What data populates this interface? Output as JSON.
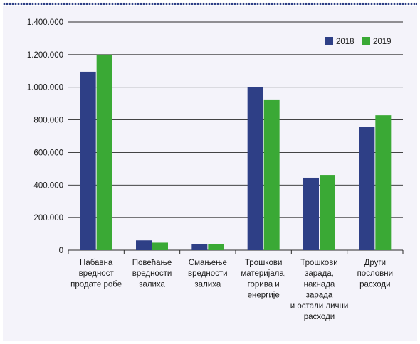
{
  "chart_data": {
    "type": "bar",
    "categories": [
      [
        "Набавна",
        "вредност",
        "продате робе"
      ],
      [
        "Повећање",
        "вредности",
        "залиха"
      ],
      [
        "Смањење",
        "вредности",
        "залиха"
      ],
      [
        "Трошкови",
        "материјала,",
        "горива и",
        "енергије"
      ],
      [
        "Трошкови",
        "зарада,",
        "накнада",
        "зарада",
        "и остали лични",
        "расходи"
      ],
      [
        "Други",
        "пословни",
        "расходи"
      ]
    ],
    "series": [
      {
        "name": "2018",
        "color": "#2e3f86",
        "values": [
          1095000,
          60000,
          38000,
          1000000,
          445000,
          758000
        ]
      },
      {
        "name": "2019",
        "color": "#3aa935",
        "values": [
          1200000,
          46000,
          37000,
          925000,
          462000,
          828000
        ]
      }
    ],
    "yticks": [
      "0",
      "200.000",
      "400.000",
      "600.000",
      "800.000",
      "1.000.000",
      "1.200.000",
      "1.400.000"
    ],
    "ylim": [
      0,
      1400000
    ],
    "grid": true,
    "legend_position": "top-right",
    "title": "",
    "xlabel": "",
    "ylabel": ""
  }
}
